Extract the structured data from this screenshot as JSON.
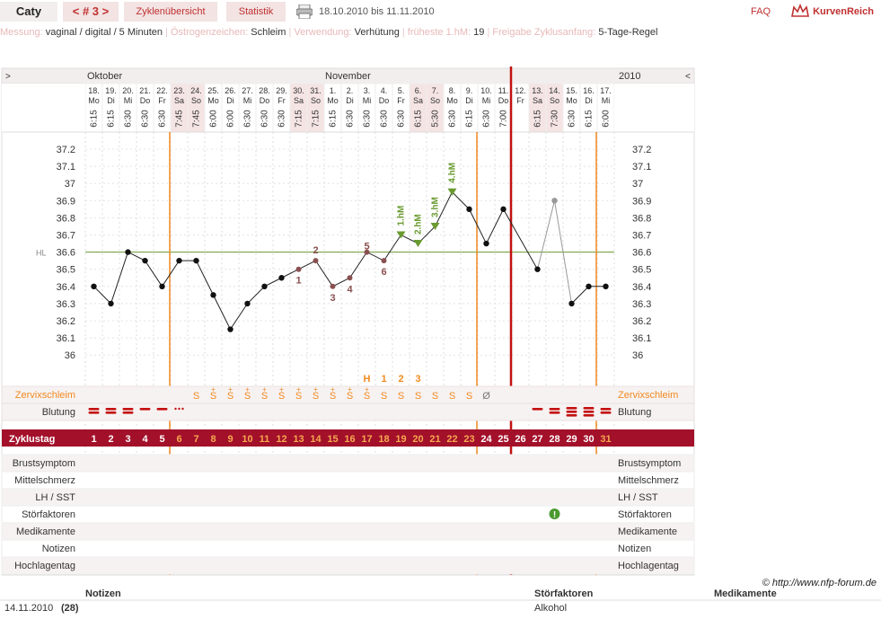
{
  "header": {
    "user": "Caty",
    "cycle": "< # 3 >",
    "overview": "Zyklenübersicht",
    "stats": "Statistik",
    "date_range": "18.10.2010 bis 11.11.2010",
    "faq": "FAQ",
    "logo_text": "KurvenReich",
    "print_icon": "printer-icon",
    "logo_icon": "crown-icon"
  },
  "info": [
    {
      "label": "Messung:",
      "value": "vaginal / digital / 5 Minuten"
    },
    {
      "label": "Östrogenzeichen:",
      "value": "Schleim"
    },
    {
      "label": "Verwendung:",
      "value": "Verhütung"
    },
    {
      "label": "früheste 1.hM:",
      "value": "19"
    },
    {
      "label": "Freigabe Zyklusanfang:",
      "value": "5-Tage-Regel"
    }
  ],
  "nav": {
    "left": ">",
    "right": "<",
    "month1": "Oktober",
    "month2": "November",
    "year": "2010"
  },
  "colors": {
    "accent": "#c03030",
    "bar": "#a3102a",
    "orange": "#f08a20",
    "green": "#6a9a30",
    "weekend": "#f5e4e4",
    "row_bg": "#f7f2f2"
  },
  "chart_data": {
    "type": "line",
    "ylim": [
      36.0,
      37.2
    ],
    "yticks": [
      "37.2",
      "37.1",
      "37",
      "36.9",
      "36.8",
      "36.7",
      "36.6",
      "36.5",
      "36.4",
      "36.3",
      "36.2",
      "36.1",
      "36"
    ],
    "hl_label": "HL",
    "hl_value": 36.6,
    "days": [
      {
        "d": "18.",
        "w": "Mo",
        "t": "6:15",
        "temp": 36.4,
        "bl": "heavy",
        "z": ""
      },
      {
        "d": "19.",
        "w": "Di",
        "t": "6:15",
        "temp": 36.3,
        "bl": "heavy",
        "z": ""
      },
      {
        "d": "20.",
        "w": "Mi",
        "t": "6:30",
        "temp": 36.6,
        "bl": "heavy",
        "z": ""
      },
      {
        "d": "21.",
        "w": "Do",
        "t": "6:30",
        "temp": 36.55,
        "bl": "light",
        "z": ""
      },
      {
        "d": "22.",
        "w": "Fr",
        "t": "6:30",
        "temp": 36.4,
        "bl": "light",
        "z": ""
      },
      {
        "d": "23.",
        "w": "Sa",
        "t": "7:45",
        "temp": 36.55,
        "bl": "spot",
        "z": ""
      },
      {
        "d": "24.",
        "w": "So",
        "t": "7:45",
        "temp": 36.55,
        "bl": "",
        "z": "S"
      },
      {
        "d": "25.",
        "w": "Mo",
        "t": "6:00",
        "temp": 36.35,
        "bl": "",
        "z": "S+"
      },
      {
        "d": "26.",
        "w": "Di",
        "t": "6:00",
        "temp": 36.15,
        "bl": "",
        "z": "S+"
      },
      {
        "d": "27.",
        "w": "Mi",
        "t": "6:30",
        "temp": 36.3,
        "bl": "",
        "z": "S+"
      },
      {
        "d": "28.",
        "w": "Do",
        "t": "6:30",
        "temp": 36.4,
        "bl": "",
        "z": "S+"
      },
      {
        "d": "29.",
        "w": "Fr",
        "t": "6:30",
        "temp": 36.45,
        "bl": "",
        "z": "S+"
      },
      {
        "d": "30.",
        "w": "Sa",
        "t": "7:15",
        "temp": 36.5,
        "bl": "",
        "z": "S+"
      },
      {
        "d": "31.",
        "w": "So",
        "t": "7:15",
        "temp": 36.55,
        "bl": "",
        "z": "S+"
      },
      {
        "d": "1.",
        "w": "Mo",
        "t": "6:15",
        "temp": 36.4,
        "bl": "",
        "z": "S+"
      },
      {
        "d": "2.",
        "w": "Di",
        "t": "6:30",
        "temp": 36.45,
        "bl": "",
        "z": "S+"
      },
      {
        "d": "3.",
        "w": "Mi",
        "t": "6:30",
        "temp": 36.6,
        "bl": "",
        "z": "S+"
      },
      {
        "d": "4.",
        "w": "Do",
        "t": "6:30",
        "temp": 36.55,
        "bl": "",
        "z": "S"
      },
      {
        "d": "5.",
        "w": "Fr",
        "t": "6:30",
        "temp": 36.7,
        "bl": "",
        "z": "S"
      },
      {
        "d": "6.",
        "w": "Sa",
        "t": "6:15",
        "temp": 36.65,
        "bl": "",
        "z": "S"
      },
      {
        "d": "7.",
        "w": "So",
        "t": "5:30",
        "temp": 36.75,
        "bl": "",
        "z": "S"
      },
      {
        "d": "8.",
        "w": "Mo",
        "t": "6:30",
        "temp": 36.95,
        "bl": "",
        "z": "S"
      },
      {
        "d": "9.",
        "w": "Di",
        "t": "6:15",
        "temp": 36.85,
        "bl": "",
        "z": "S"
      },
      {
        "d": "10.",
        "w": "Mi",
        "t": "6:30",
        "temp": 36.65,
        "bl": "",
        "z": "Ø"
      },
      {
        "d": "11.",
        "w": "Do",
        "t": "7:00",
        "temp": 36.85,
        "bl": "",
        "z": ""
      },
      {
        "d": "12.",
        "w": "Fr",
        "t": "",
        "temp": null,
        "bl": "",
        "z": ""
      },
      {
        "d": "13.",
        "w": "Sa",
        "t": "6:15",
        "temp": 36.5,
        "bl": "light",
        "z": ""
      },
      {
        "d": "14.",
        "w": "So",
        "t": "7:30",
        "temp": 36.9,
        "bl": "heavy",
        "z": ""
      },
      {
        "d": "15.",
        "w": "Mo",
        "t": "6:30",
        "temp": 36.3,
        "bl": "heavy3",
        "z": ""
      },
      {
        "d": "16.",
        "w": "Di",
        "t": "6:15",
        "temp": 36.4,
        "bl": "heavy3",
        "z": ""
      },
      {
        "d": "17.",
        "w": "Mi",
        "t": "6:00",
        "temp": 36.4,
        "bl": "heavy",
        "z": ""
      }
    ],
    "low_labels": [
      {
        "day": 12,
        "text": "1"
      },
      {
        "day": 13,
        "text": "2"
      },
      {
        "day": 14,
        "text": "3"
      },
      {
        "day": 15,
        "text": "4"
      },
      {
        "day": 16,
        "text": "5"
      },
      {
        "day": 17,
        "text": "6"
      }
    ],
    "hm_labels": [
      {
        "day": 18,
        "text": "1.hM"
      },
      {
        "day": 19,
        "text": "2.hM"
      },
      {
        "day": 20,
        "text": "3.hM"
      },
      {
        "day": 21,
        "text": "4.hM"
      }
    ],
    "peak_labels": [
      {
        "day": 16,
        "text": "H"
      },
      {
        "day": 17,
        "text": "1"
      },
      {
        "day": 18,
        "text": "2"
      },
      {
        "day": 19,
        "text": "3"
      }
    ]
  },
  "rows": {
    "zervix": "Zervixschleim",
    "blutung": "Blutung",
    "zyklustag": "Zyklustag",
    "brust": "Brustsymptom",
    "mittel": "Mittelschmerz",
    "lh": "LH / SST",
    "stoer": "Störfaktoren",
    "medi": "Medikamente",
    "notizen": "Notizen",
    "hochlage": "Hochlagentag"
  },
  "copyright": "© http://www.nfp-forum.de",
  "footer": {
    "notes_h": "Notizen",
    "stoer_h": "Störfaktoren",
    "medi_h": "Medikamente",
    "date": "14.11.2010",
    "day": "(28)",
    "factor": "Alkohol"
  }
}
